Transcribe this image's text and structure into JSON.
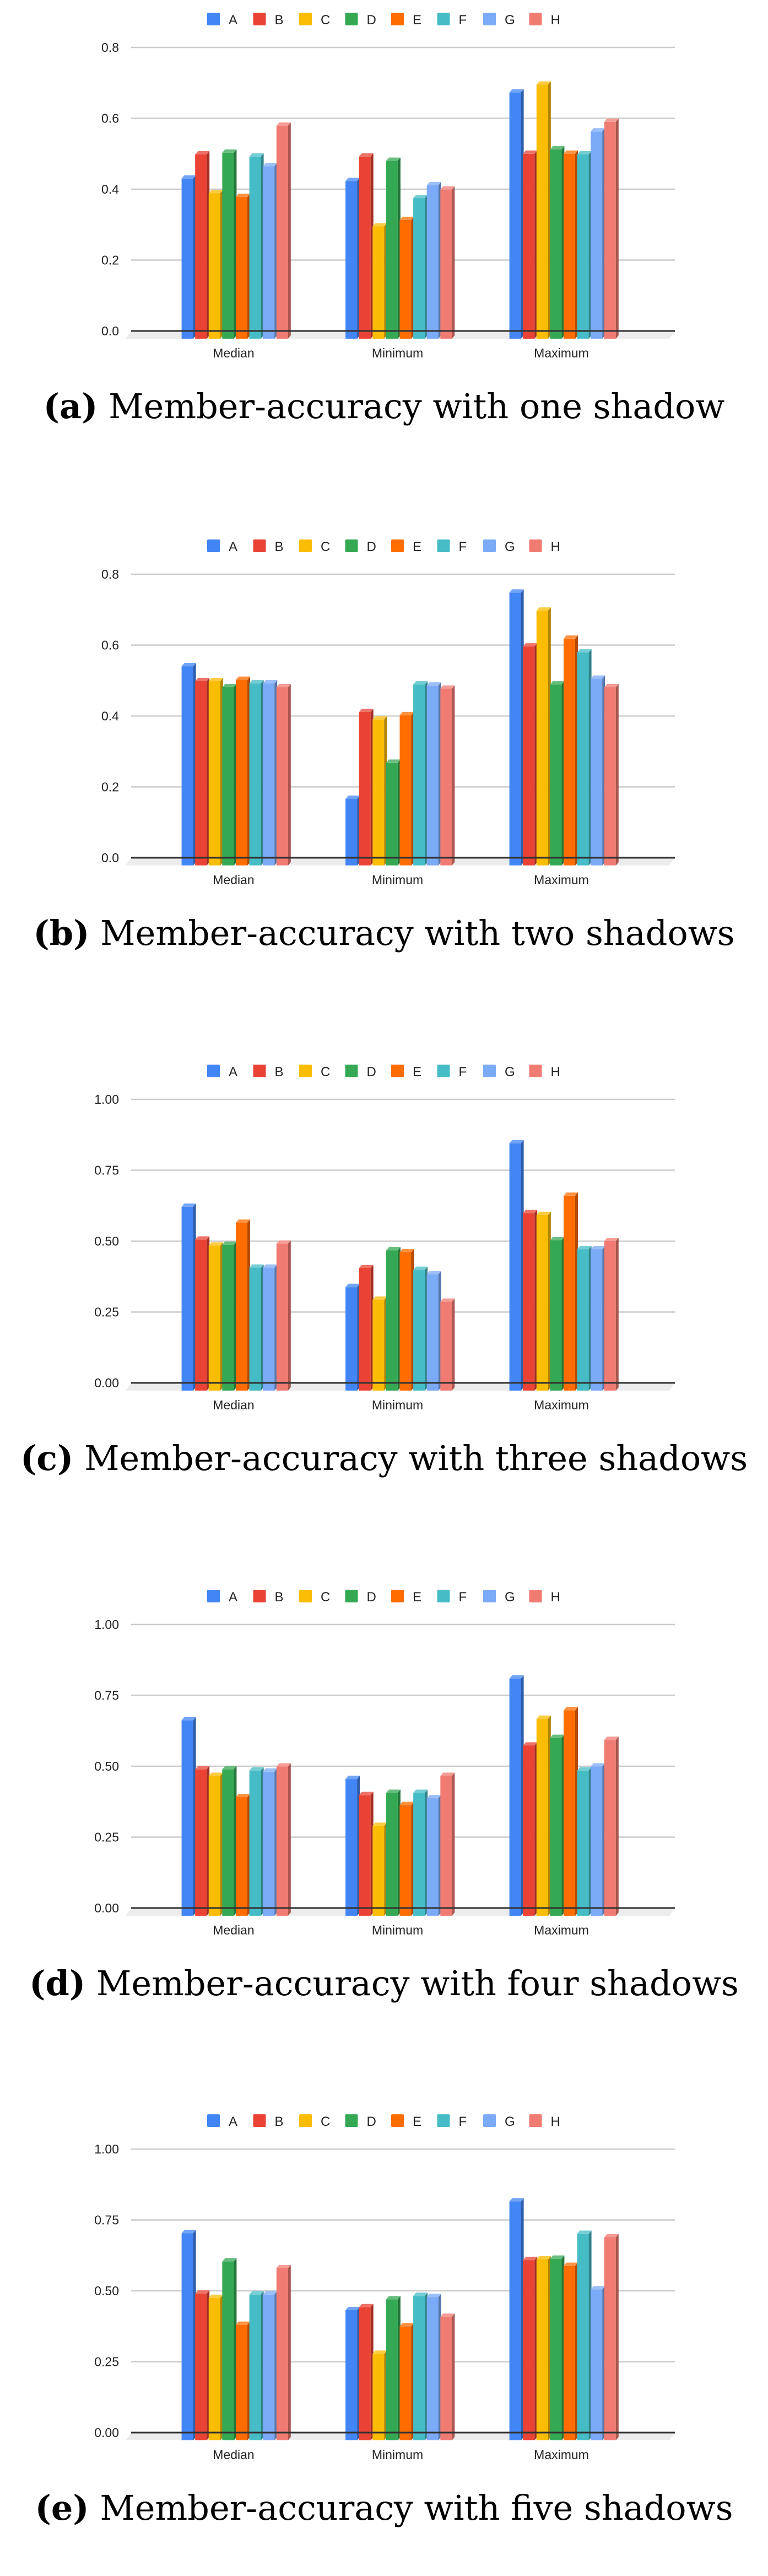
{
  "colors": {
    "A": "#4285f4",
    "B": "#ea4335",
    "C": "#fbbc04",
    "D": "#34a853",
    "E": "#ff6d01",
    "F": "#46bdc6",
    "G": "#7baaf7",
    "H": "#f07b72"
  },
  "chart_data": [
    {
      "type": "bar",
      "caption_label": "(a)",
      "caption_text": "Member-accuracy with one shadow",
      "categories": [
        "Median",
        "Minimum",
        "Maximum"
      ],
      "ylim": [
        0,
        0.8
      ],
      "yticks": [
        "0.0",
        "0.2",
        "0.4",
        "0.6",
        "0.8"
      ],
      "ytick_values": [
        0,
        0.2,
        0.4,
        0.6,
        0.8
      ],
      "grid": true,
      "legend": "top",
      "series": [
        {
          "name": "A",
          "values": [
            0.43,
            0.423,
            0.673
          ]
        },
        {
          "name": "B",
          "values": [
            0.498,
            0.492,
            0.5
          ]
        },
        {
          "name": "C",
          "values": [
            0.389,
            0.295,
            0.695
          ]
        },
        {
          "name": "D",
          "values": [
            0.503,
            0.48,
            0.512
          ]
        },
        {
          "name": "E",
          "values": [
            0.378,
            0.313,
            0.5
          ]
        },
        {
          "name": "F",
          "values": [
            0.492,
            0.375,
            0.498
          ]
        },
        {
          "name": "G",
          "values": [
            0.465,
            0.411,
            0.563
          ]
        },
        {
          "name": "H",
          "values": [
            0.579,
            0.399,
            0.59
          ]
        }
      ]
    },
    {
      "type": "bar",
      "caption_label": "(b)",
      "caption_text": "Member-accuracy with two shadows",
      "categories": [
        "Median",
        "Minimum",
        "Maximum"
      ],
      "ylim": [
        0,
        0.8
      ],
      "yticks": [
        "0.0",
        "0.2",
        "0.4",
        "0.6",
        "0.8"
      ],
      "ytick_values": [
        0,
        0.2,
        0.4,
        0.6,
        0.8
      ],
      "grid": true,
      "legend": "top",
      "series": [
        {
          "name": "A",
          "values": [
            0.54,
            0.166,
            0.748
          ]
        },
        {
          "name": "B",
          "values": [
            0.498,
            0.411,
            0.596
          ]
        },
        {
          "name": "C",
          "values": [
            0.498,
            0.39,
            0.697
          ]
        },
        {
          "name": "D",
          "values": [
            0.481,
            0.268,
            0.489
          ]
        },
        {
          "name": "E",
          "values": [
            0.502,
            0.402,
            0.618
          ]
        },
        {
          "name": "F",
          "values": [
            0.492,
            0.489,
            0.579
          ]
        },
        {
          "name": "G",
          "values": [
            0.492,
            0.486,
            0.505
          ]
        },
        {
          "name": "H",
          "values": [
            0.481,
            0.477,
            0.481
          ]
        }
      ]
    },
    {
      "type": "bar",
      "caption_label": "(c)",
      "caption_text": "Member-accuracy with three shadows",
      "categories": [
        "Median",
        "Minimum",
        "Maximum"
      ],
      "ylim": [
        0,
        1.0
      ],
      "yticks": [
        "0.00",
        "0.25",
        "0.50",
        "0.75",
        "1.00"
      ],
      "ytick_values": [
        0,
        0.25,
        0.5,
        0.75,
        1.0
      ],
      "grid": true,
      "legend": "top",
      "series": [
        {
          "name": "A",
          "values": [
            0.621,
            0.338,
            0.845
          ]
        },
        {
          "name": "B",
          "values": [
            0.505,
            0.405,
            0.599
          ]
        },
        {
          "name": "C",
          "values": [
            0.484,
            0.293,
            0.592
          ]
        },
        {
          "name": "D",
          "values": [
            0.487,
            0.467,
            0.503
          ]
        },
        {
          "name": "E",
          "values": [
            0.565,
            0.461,
            0.66
          ]
        },
        {
          "name": "F",
          "values": [
            0.406,
            0.398,
            0.471
          ]
        },
        {
          "name": "G",
          "values": [
            0.406,
            0.383,
            0.471
          ]
        },
        {
          "name": "H",
          "values": [
            0.491,
            0.286,
            0.5
          ]
        }
      ]
    },
    {
      "type": "bar",
      "caption_label": "(d)",
      "caption_text": "Member-accuracy with four shadows",
      "categories": [
        "Median",
        "Minimum",
        "Maximum"
      ],
      "ylim": [
        0,
        1.0
      ],
      "yticks": [
        "0.00",
        "0.25",
        "0.50",
        "0.75",
        "1.00"
      ],
      "ytick_values": [
        0,
        0.25,
        0.5,
        0.75,
        1.0
      ],
      "grid": true,
      "legend": "top",
      "series": [
        {
          "name": "A",
          "values": [
            0.662,
            0.455,
            0.809
          ]
        },
        {
          "name": "B",
          "values": [
            0.489,
            0.398,
            0.573
          ]
        },
        {
          "name": "C",
          "values": [
            0.466,
            0.29,
            0.667
          ]
        },
        {
          "name": "D",
          "values": [
            0.489,
            0.406,
            0.6
          ]
        },
        {
          "name": "E",
          "values": [
            0.391,
            0.363,
            0.697
          ]
        },
        {
          "name": "F",
          "values": [
            0.485,
            0.406,
            0.485
          ]
        },
        {
          "name": "G",
          "values": [
            0.481,
            0.387,
            0.499
          ]
        },
        {
          "name": "H",
          "values": [
            0.499,
            0.466,
            0.593
          ]
        }
      ]
    },
    {
      "type": "bar",
      "caption_label": "(e)",
      "caption_text": "Member-accuracy with five shadows",
      "categories": [
        "Median",
        "Minimum",
        "Maximum"
      ],
      "ylim": [
        0,
        1.0
      ],
      "yticks": [
        "0.00",
        "0.25",
        "0.50",
        "0.75",
        "1.00"
      ],
      "ytick_values": [
        0,
        0.25,
        0.5,
        0.75,
        1.0
      ],
      "grid": true,
      "legend": "top",
      "series": [
        {
          "name": "A",
          "values": [
            0.703,
            0.432,
            0.815
          ]
        },
        {
          "name": "B",
          "values": [
            0.49,
            0.442,
            0.608
          ]
        },
        {
          "name": "C",
          "values": [
            0.475,
            0.278,
            0.611
          ]
        },
        {
          "name": "D",
          "values": [
            0.603,
            0.47,
            0.613
          ]
        },
        {
          "name": "E",
          "values": [
            0.38,
            0.375,
            0.588
          ]
        },
        {
          "name": "F",
          "values": [
            0.487,
            0.482,
            0.701
          ]
        },
        {
          "name": "G",
          "values": [
            0.487,
            0.478,
            0.505
          ]
        },
        {
          "name": "H",
          "values": [
            0.58,
            0.408,
            0.689
          ]
        }
      ]
    }
  ]
}
